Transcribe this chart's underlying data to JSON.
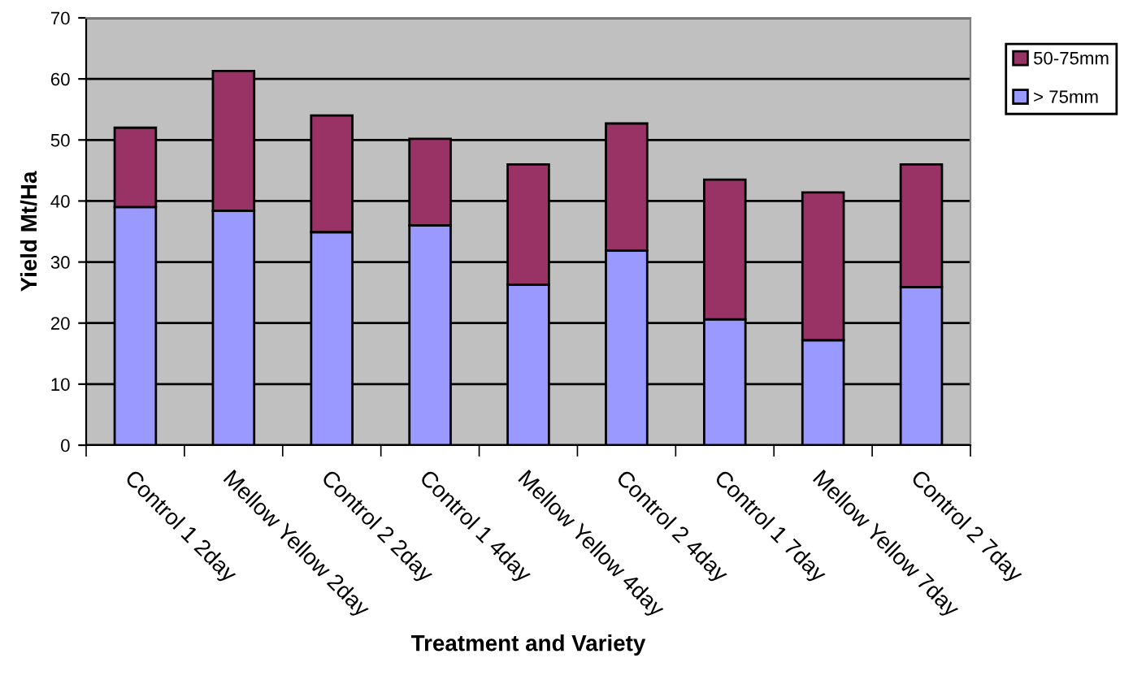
{
  "chart_data": {
    "type": "bar",
    "stacked": true,
    "xlabel": "Treatment and Variety",
    "ylabel": "Yield Mt/Ha",
    "categories": [
      "Control 1 2day",
      "Mellow Yellow 2day",
      "Control 2 2day",
      "Control 1 4day",
      "Mellow Yellow 4day",
      "Control 2 4day",
      "Control 1 7day",
      "Mellow Yellow 7day",
      "Control 2 7day"
    ],
    "series": [
      {
        "name": "> 75mm",
        "color": "#9999ff",
        "values": [
          39,
          38.4,
          34.9,
          36,
          26.3,
          31.9,
          20.6,
          17.2,
          25.9
        ]
      },
      {
        "name": "50-75mm",
        "color": "#993366",
        "values": [
          13,
          22.9,
          19.1,
          14.2,
          19.7,
          20.8,
          22.9,
          24.2,
          20.1
        ]
      }
    ],
    "ylim": [
      0,
      70
    ],
    "yticks": [
      0,
      10,
      20,
      30,
      40,
      50,
      60,
      70
    ],
    "grid": "y",
    "legend": "right"
  }
}
